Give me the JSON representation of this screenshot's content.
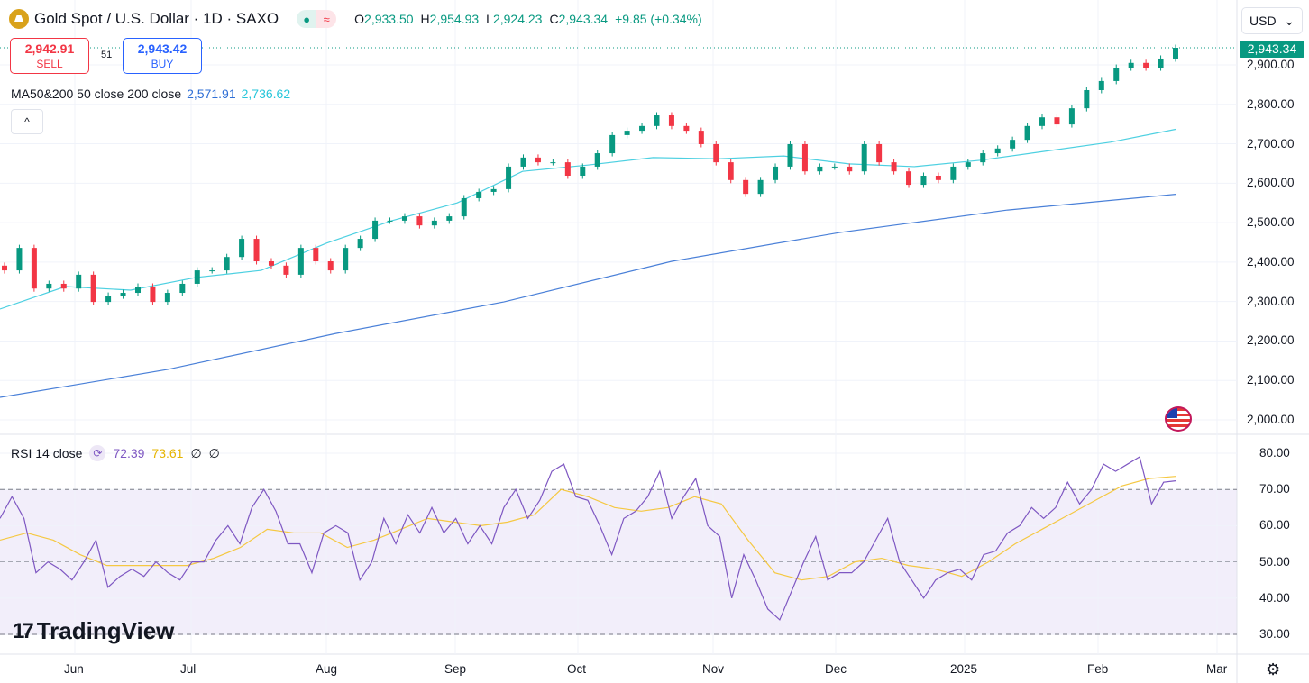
{
  "header": {
    "title": "Gold Spot / U.S. Dollar · 1D · SAXO",
    "status_open_icon": "dot-icon",
    "status_delayed_icon": "approx-icon",
    "ohlc": {
      "o_label": "O",
      "o": "2,933.50",
      "h_label": "H",
      "h": "2,954.93",
      "l_label": "L",
      "l": "2,924.23",
      "c_label": "C",
      "c": "2,943.34",
      "change": "+9.85 (+0.34%)"
    }
  },
  "trade": {
    "sell_price": "2,942.91",
    "sell_label": "SELL",
    "spread": "51",
    "buy_price": "2,943.42",
    "buy_label": "BUY"
  },
  "ma_legend": {
    "label": "MA50&200 50 close 200 close",
    "ma200_value": "2,571.91",
    "ma50_value": "2,736.62"
  },
  "rsi_legend": {
    "label": "RSI 14 close",
    "rsi_value": "72.39",
    "rsi_ma_value": "73.61",
    "extra1": "∅",
    "extra2": "∅"
  },
  "currency": "USD",
  "last_price": "2,943.34",
  "brand": "TradingView",
  "colors": {
    "up": "#089981",
    "down": "#f23645",
    "ma50": "#4dd0e1",
    "ma200": "#4a80d8",
    "rsi": "#7e57c2",
    "rsi_ma": "#f5c842",
    "rsi_band": "#f2eefa"
  },
  "chart_data": [
    {
      "type": "candlestick",
      "title": "Gold Spot / U.S. Dollar · 1D · SAXO",
      "x_ticks": [
        "Jun",
        "Jul",
        "Aug",
        "Sep",
        "Oct",
        "Nov",
        "Dec",
        "2025",
        "Feb",
        "Mar"
      ],
      "y_ticks": [
        "2,000.00",
        "2,100.00",
        "2,200.00",
        "2,300.00",
        "2,400.00",
        "2,500.00",
        "2,600.00",
        "2,700.00",
        "2,800.00",
        "2,900.00"
      ],
      "ylim": [
        1980,
        2990
      ],
      "grid": true,
      "closes": [
        2379,
        2436,
        2333,
        2345,
        2333,
        2368,
        2299,
        2315,
        2322,
        2338,
        2299,
        2322,
        2345,
        2379,
        2379,
        2413,
        2459,
        2402,
        2391,
        2368,
        2436,
        2402,
        2379,
        2436,
        2459,
        2505,
        2505,
        2516,
        2493,
        2505,
        2516,
        2562,
        2578,
        2585,
        2642,
        2665,
        2653,
        2653,
        2619,
        2642,
        2676,
        2722,
        2733,
        2745,
        2772,
        2745,
        2733,
        2699,
        2653,
        2608,
        2573,
        2608,
        2642,
        2699,
        2630,
        2642,
        2642,
        2630,
        2699,
        2653,
        2630,
        2596,
        2619,
        2608,
        2642,
        2653,
        2676,
        2688,
        2710,
        2745,
        2767,
        2749,
        2790,
        2836,
        2859,
        2893,
        2905,
        2893,
        2916,
        2943.34
      ],
      "series": [
        {
          "name": "MA 50",
          "values": [
            2281,
            2338,
            2329,
            2361,
            2379,
            2448,
            2505,
            2550,
            2630,
            2646,
            2665,
            2662,
            2669,
            2649,
            2642,
            2658,
            2681,
            2704,
            2736.62
          ]
        },
        {
          "name": "MA 200",
          "values": [
            2057,
            2128,
            2219,
            2299,
            2402,
            2475,
            2532,
            2571.91
          ]
        }
      ]
    },
    {
      "type": "line",
      "title": "RSI 14 close",
      "y_ticks": [
        "30.00",
        "40.00",
        "50.00",
        "60.00",
        "70.00",
        "80.00"
      ],
      "ylim": [
        27,
        85
      ],
      "bands": [
        30,
        50,
        70
      ],
      "series": [
        {
          "name": "RSI",
          "values": [
            62,
            68,
            62,
            47,
            50,
            48,
            45,
            50,
            56,
            43,
            46,
            48,
            46,
            50,
            47,
            45,
            50,
            50,
            56,
            60,
            55,
            65,
            70,
            64,
            55,
            55,
            47,
            58,
            60,
            58,
            45,
            50,
            62,
            55,
            63,
            58,
            65,
            58,
            62,
            55,
            60,
            55,
            65,
            70,
            62,
            67,
            75,
            77,
            68,
            67,
            60,
            52,
            62,
            64,
            68,
            75,
            62,
            68,
            73,
            60,
            57,
            40,
            52,
            45,
            37,
            34,
            42,
            50,
            57,
            45,
            47,
            47,
            50,
            56,
            62,
            50,
            45,
            40,
            45,
            47,
            48,
            45,
            52,
            53,
            58,
            60,
            65,
            62,
            65,
            72,
            66,
            70,
            77,
            75,
            77,
            79,
            66,
            72,
            72.39
          ]
        },
        {
          "name": "RSI MA",
          "values": [
            56,
            58,
            56,
            52,
            49,
            49,
            49,
            49,
            51,
            54,
            59,
            58,
            58,
            54,
            56,
            59,
            62,
            61,
            60,
            61,
            63,
            70,
            68,
            65,
            64,
            65,
            68,
            66,
            56,
            47,
            45,
            46,
            50,
            51,
            49,
            48,
            46,
            50,
            55,
            59,
            63,
            67,
            71,
            73,
            73.61
          ]
        }
      ]
    }
  ]
}
